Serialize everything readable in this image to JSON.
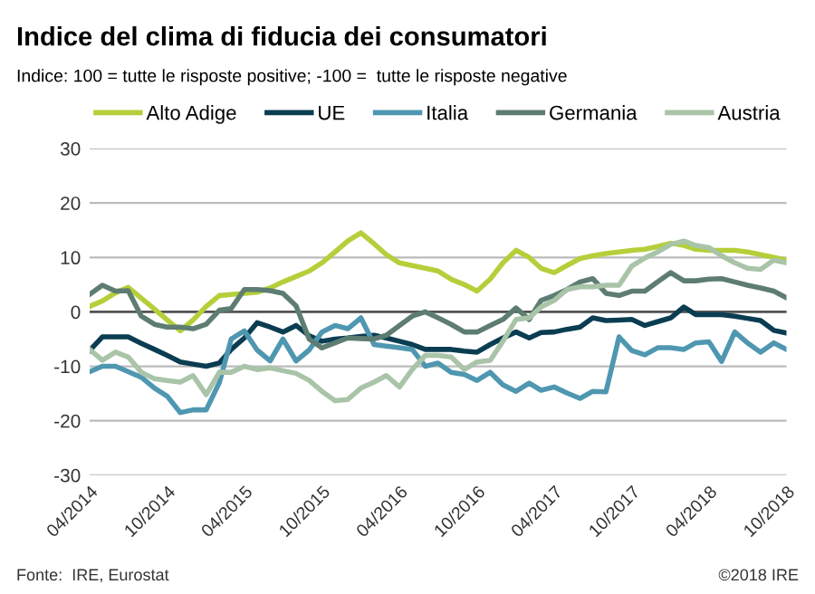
{
  "chart_data": {
    "type": "line",
    "title": "Indice del clima di fiducia dei consumatori",
    "subtitle": "Indice: 100 = tutte le risposte positive; -100 =  tutte le risposte negative",
    "x": [
      "2014-04",
      "2014-05",
      "2014-06",
      "2014-07",
      "2014-08",
      "2014-09",
      "2014-10",
      "2014-11",
      "2014-12",
      "2015-01",
      "2015-02",
      "2015-03",
      "2015-04",
      "2015-05",
      "2015-06",
      "2015-07",
      "2015-08",
      "2015-09",
      "2015-10",
      "2015-11",
      "2015-12",
      "2016-01",
      "2016-02",
      "2016-03",
      "2016-04",
      "2016-05",
      "2016-06",
      "2016-07",
      "2016-08",
      "2016-09",
      "2016-10",
      "2016-11",
      "2016-12",
      "2017-01",
      "2017-02",
      "2017-03",
      "2017-04",
      "2017-05",
      "2017-06",
      "2017-07",
      "2017-08",
      "2017-09",
      "2017-10",
      "2017-11",
      "2017-12",
      "2018-01",
      "2018-02",
      "2018-03",
      "2018-04",
      "2018-05",
      "2018-06",
      "2018-07",
      "2018-08",
      "2018-09",
      "2018-10"
    ],
    "series": [
      {
        "name": "Alto Adige",
        "color": "#b5cf3a",
        "values": [
          1,
          2,
          3.5,
          4.5,
          2.5,
          0.5,
          -1.5,
          -3.5,
          -1.5,
          1,
          3,
          3.2,
          3.4,
          3.6,
          4.4,
          5.5,
          6.5,
          7.5,
          9,
          11,
          13,
          14.5,
          12.5,
          10.5,
          9,
          8.5,
          8,
          7.5,
          6,
          5,
          3.8,
          6,
          9,
          11.3,
          10,
          8,
          7.2,
          8.5,
          9.8,
          10.3,
          10.7,
          11,
          11.3,
          11.5,
          12,
          12.6,
          12.2,
          11.5,
          11.3,
          11.3,
          11.3,
          11,
          10.5,
          10,
          9.5
        ]
      },
      {
        "name": "UE",
        "color": "#0b3d52",
        "values": [
          -7.1,
          -4.6,
          -4.6,
          -4.6,
          -5.8,
          -6.9,
          -8,
          -9.2,
          -9.6,
          -10,
          -9.4,
          -6.9,
          -4.8,
          -2,
          -2.8,
          -3.7,
          -2.5,
          -4.4,
          -5.4,
          -5,
          -4.8,
          -4.5,
          -4.3,
          -4.8,
          -5.4,
          -6,
          -6.9,
          -6.9,
          -6.9,
          -7.2,
          -7.4,
          -6,
          -4.8,
          -3.7,
          -4.8,
          -3.8,
          -3.7,
          -3.2,
          -2.8,
          -1.1,
          -1.6,
          -1.5,
          -1.4,
          -2.5,
          -1.8,
          -1.1,
          0.9,
          -0.5,
          -0.5,
          -0.5,
          -0.8,
          -1.2,
          -1.6,
          -3.4,
          -3.9
        ]
      },
      {
        "name": "Italia",
        "color": "#4f97b0",
        "values": [
          -11,
          -10,
          -10,
          -11,
          -12,
          -14,
          -15.5,
          -18.5,
          -18,
          -18,
          -13,
          -5,
          -3.5,
          -7,
          -9,
          -5,
          -9,
          -7,
          -3.7,
          -2.5,
          -3.1,
          -1.1,
          -6,
          -6.3,
          -6.6,
          -6.9,
          -10,
          -9.4,
          -11.1,
          -11.5,
          -12.6,
          -11.1,
          -13.4,
          -14.6,
          -13.1,
          -14.4,
          -13.8,
          -14.9,
          -15.9,
          -14.6,
          -14.7,
          -4.6,
          -7.1,
          -7.9,
          -6.6,
          -6.6,
          -6.9,
          -5.7,
          -5.5,
          -9.1,
          -3.7,
          -5.7,
          -7.4,
          -5.7,
          -6.9
        ]
      },
      {
        "name": "Germania",
        "color": "#5e7d72",
        "values": [
          3.2,
          4.9,
          3.8,
          3.9,
          -0.8,
          -2.3,
          -2.8,
          -2.8,
          -3.1,
          -2.3,
          0.3,
          0.6,
          4.1,
          4.1,
          3.9,
          3.4,
          1.1,
          -5,
          -6.6,
          -5.7,
          -4.8,
          -4.9,
          -5,
          -4.3,
          -2.5,
          -0.8,
          0,
          -1.1,
          -2.3,
          -3.7,
          -3.7,
          -2.5,
          -1.4,
          0.7,
          -1.4,
          2.1,
          3,
          4.1,
          5.5,
          6.1,
          3.4,
          3,
          3.8,
          3.8,
          5.5,
          7.2,
          5.7,
          5.7,
          6,
          6.1,
          5.5,
          4.9,
          4.4,
          3.8,
          2.6
        ]
      },
      {
        "name": "Austria",
        "color": "#a9c4a8",
        "values": [
          -6.9,
          -8.9,
          -7.4,
          -8.3,
          -11.1,
          -12.3,
          -12.6,
          -12.9,
          -11.7,
          -15.2,
          -11.1,
          -11.1,
          -10,
          -10.6,
          -10.3,
          -10.8,
          -11.3,
          -12.6,
          -14.6,
          -16.3,
          -16.1,
          -14,
          -12.9,
          -11.7,
          -13.8,
          -10.6,
          -8,
          -8,
          -8.3,
          -10.6,
          -9.2,
          -8.9,
          -5.4,
          -1.4,
          -1.1,
          0.9,
          2.1,
          4.1,
          4.6,
          4.6,
          4.9,
          4.9,
          8.4,
          9.9,
          11,
          12.4,
          13,
          12.2,
          11.8,
          10.3,
          9,
          8,
          7.8,
          9.5,
          9
        ]
      }
    ],
    "xlim": [
      "2014-04",
      "2018-10"
    ],
    "xticks": [
      {
        "value": "2014-04",
        "label": "04/2014"
      },
      {
        "value": "2014-10",
        "label": "10/2014"
      },
      {
        "value": "2015-04",
        "label": "04/2015"
      },
      {
        "value": "2015-10",
        "label": "10/2015"
      },
      {
        "value": "2016-04",
        "label": "04/2016"
      },
      {
        "value": "2016-10",
        "label": "10/2016"
      },
      {
        "value": "2017-04",
        "label": "04/2017"
      },
      {
        "value": "2017-10",
        "label": "10/2017"
      },
      {
        "value": "2018-04",
        "label": "04/2018"
      },
      {
        "value": "2018-10",
        "label": "10/2018"
      }
    ],
    "ylim": [
      -30,
      30
    ],
    "yticks": [
      -30,
      -20,
      -10,
      0,
      10,
      20,
      30
    ],
    "ref_lines": [
      {
        "axis": "y",
        "value": 0,
        "label": null,
        "color": "#555555"
      }
    ],
    "grid": "y",
    "legend": "top",
    "annotations": [
      "Fonte:  IRE, Eurostat",
      "©2018 IRE"
    ]
  }
}
